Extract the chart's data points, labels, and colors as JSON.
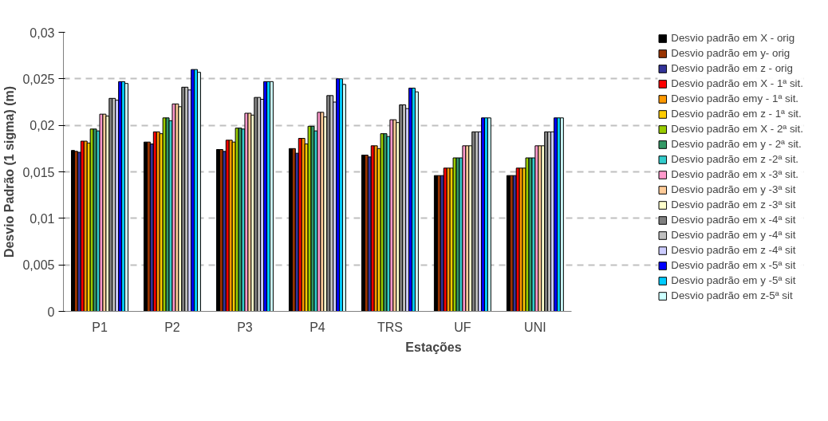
{
  "chart_data": {
    "type": "bar",
    "xlabel": "Estações",
    "ylabel": "Desvio Padrão (1 sigma) (m)",
    "categories": [
      "P1",
      "P2",
      "P3",
      "P4",
      "TRS",
      "UF",
      "UNI"
    ],
    "ylim": [
      0,
      0.03
    ],
    "yticks": [
      0,
      {
        "value": 0.005,
        "label": "0,005"
      },
      {
        "value": 0.01,
        "label": "0,01"
      },
      {
        "value": 0.015,
        "label": "0,015"
      },
      {
        "value": 0.02,
        "label": "0,02"
      },
      {
        "value": 0.025,
        "label": "0,025"
      },
      {
        "value": 0.03,
        "label": "0,03"
      }
    ],
    "grid": "y",
    "legend": "right",
    "series": [
      {
        "name": "Desvio padrão em X - orig",
        "color": "#000000",
        "values": [
          0.0173,
          0.0182,
          0.0174,
          0.0175,
          0.0168,
          0.0146,
          0.0146
        ]
      },
      {
        "name": "Desvio padrão em y- orig",
        "color": "#993300",
        "values": [
          0.0172,
          0.0182,
          0.0174,
          0.0175,
          0.0168,
          0.0146,
          0.0146
        ]
      },
      {
        "name": "Desvio padrão em z - orig",
        "color": "#333399",
        "values": [
          0.0171,
          0.018,
          0.0172,
          0.017,
          0.0166,
          0.0146,
          0.0146
        ]
      },
      {
        "name": "Desvio padrão em X - 1ª sit.",
        "color": "#ff0000",
        "values": [
          0.0183,
          0.0193,
          0.0184,
          0.0186,
          0.0178,
          0.0154,
          0.0154
        ]
      },
      {
        "name": "Desvio padrão emy - 1ª sit.",
        "color": "#ff9900",
        "values": [
          0.0183,
          0.0193,
          0.0184,
          0.0186,
          0.0178,
          0.0154,
          0.0154
        ]
      },
      {
        "name": "Desvio padrão em z - 1ª sit.",
        "color": "#ffcc00",
        "values": [
          0.0181,
          0.0191,
          0.0182,
          0.018,
          0.0175,
          0.0154,
          0.0154
        ]
      },
      {
        "name": "Desvio padrão em X - 2ª sit.",
        "color": "#99cc00",
        "values": [
          0.0196,
          0.0208,
          0.0197,
          0.0199,
          0.0191,
          0.0165,
          0.0165
        ]
      },
      {
        "name": "Desvio padrão em y - 2ª sit.",
        "color": "#339966",
        "values": [
          0.0196,
          0.0208,
          0.0197,
          0.0199,
          0.0191,
          0.0165,
          0.0165
        ]
      },
      {
        "name": "Desvio padrão em z -2ª sit.",
        "color": "#33cccc",
        "values": [
          0.0194,
          0.0205,
          0.0196,
          0.0194,
          0.0188,
          0.0165,
          0.0165
        ]
      },
      {
        "name": "Desvio padrão em x -3ª sit.",
        "color": "#ff99cc",
        "values": [
          0.0212,
          0.0223,
          0.0213,
          0.0214,
          0.0206,
          0.0178,
          0.0178
        ]
      },
      {
        "name": "Desvio padrão em y -3ª sit",
        "color": "#ffcc99",
        "values": [
          0.0212,
          0.0223,
          0.0213,
          0.0214,
          0.0206,
          0.0178,
          0.0178
        ]
      },
      {
        "name": "Desvio padrão em z -3ª sit",
        "color": "#ffffcc",
        "values": [
          0.021,
          0.022,
          0.0211,
          0.0209,
          0.0203,
          0.0178,
          0.0178
        ]
      },
      {
        "name": "Desvio padrão em x -4ª sit",
        "color": "#808080",
        "values": [
          0.0229,
          0.0241,
          0.023,
          0.0232,
          0.0222,
          0.0193,
          0.0193
        ]
      },
      {
        "name": "Desvio padrão em y -4ª sit",
        "color": "#c0c0c0",
        "values": [
          0.0229,
          0.0241,
          0.023,
          0.0232,
          0.0222,
          0.0193,
          0.0193
        ]
      },
      {
        "name": "Desvio padrão em z -4ª sit",
        "color": "#ccccff",
        "values": [
          0.0227,
          0.0238,
          0.0228,
          0.0225,
          0.0218,
          0.0193,
          0.0193
        ]
      },
      {
        "name": "Desvio padrão em x -5ª sit",
        "color": "#0000ff",
        "values": [
          0.0247,
          0.026,
          0.0247,
          0.025,
          0.024,
          0.0208,
          0.0208
        ]
      },
      {
        "name": "Desvio padrão em y -5ª sit",
        "color": "#00ccff",
        "values": [
          0.0247,
          0.026,
          0.0247,
          0.025,
          0.024,
          0.0208,
          0.0208
        ]
      },
      {
        "name": "Desvio padrão em z-5ª sit",
        "color": "#ccffff",
        "values": [
          0.0245,
          0.0257,
          0.0247,
          0.0244,
          0.0236,
          0.0208,
          0.0208
        ]
      }
    ]
  }
}
